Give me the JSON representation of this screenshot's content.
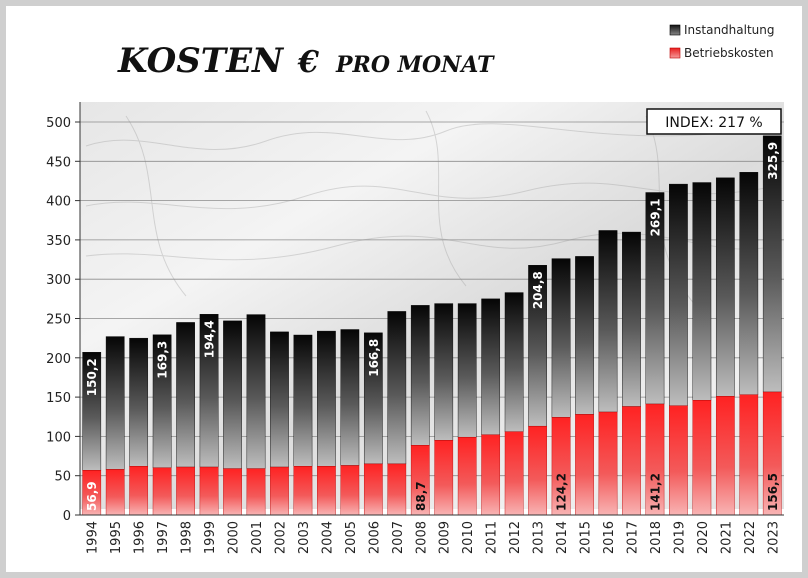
{
  "chart_data": {
    "type": "bar",
    "stacked": true,
    "title": "KOSTEN",
    "title_symbol": "€",
    "title_suffix": "PRO MONAT",
    "index_label": "INDEX: 217 %",
    "categories": [
      "1994",
      "1995",
      "1996",
      "1997",
      "1998",
      "1999",
      "2000",
      "2001",
      "2002",
      "2003",
      "2004",
      "2005",
      "2006",
      "2007",
      "2008",
      "2009",
      "2010",
      "2011",
      "2012",
      "2013",
      "2014",
      "2015",
      "2016",
      "2017",
      "2018",
      "2019",
      "2020",
      "2021",
      "2022",
      "2023"
    ],
    "series": [
      {
        "name": "Betriebskosten",
        "color": "#e8232a",
        "values": [
          56.9,
          58,
          62,
          60,
          61,
          61,
          59,
          59,
          61,
          62,
          62,
          63,
          65,
          65,
          88.7,
          95,
          99,
          102,
          106,
          113,
          124.2,
          128,
          131,
          138,
          141.2,
          139,
          146,
          151,
          153,
          156.5
        ]
      },
      {
        "name": "Instandhaltung",
        "color": "#1a1a1a",
        "values": [
          150.2,
          169,
          163,
          169.3,
          184,
          194.4,
          188,
          196,
          172,
          167,
          172,
          173,
          166.8,
          194,
          178,
          174,
          170,
          173,
          177,
          204.8,
          202,
          201,
          231,
          222,
          269.1,
          282,
          277,
          278,
          283,
          325.9
        ]
      }
    ],
    "data_labels": [
      {
        "year": "1994",
        "series": "Instandhaltung",
        "text": "150,2"
      },
      {
        "year": "1997",
        "series": "Instandhaltung",
        "text": "169,3"
      },
      {
        "year": "1999",
        "series": "Instandhaltung",
        "text": "194,4"
      },
      {
        "year": "2006",
        "series": "Instandhaltung",
        "text": "166,8"
      },
      {
        "year": "2013",
        "series": "Instandhaltung",
        "text": "204,8"
      },
      {
        "year": "2018",
        "series": "Instandhaltung",
        "text": "269,1"
      },
      {
        "year": "2023",
        "series": "Instandhaltung",
        "text": "325,9"
      },
      {
        "year": "1994",
        "series": "Betriebskosten",
        "text": "56,9"
      },
      {
        "year": "2008",
        "series": "Betriebskosten",
        "text": "88,7"
      },
      {
        "year": "2014",
        "series": "Betriebskosten",
        "text": "124,2"
      },
      {
        "year": "2018",
        "series": "Betriebskosten",
        "text": "141,2"
      },
      {
        "year": "2023",
        "series": "Betriebskosten",
        "text": "156,5"
      }
    ],
    "y_ticks": [
      0,
      50,
      100,
      150,
      200,
      250,
      300,
      350,
      400,
      450,
      500
    ],
    "ylim": [
      0,
      530
    ],
    "grid": true,
    "legend_position": "top-right",
    "xlabel": "",
    "ylabel": ""
  }
}
